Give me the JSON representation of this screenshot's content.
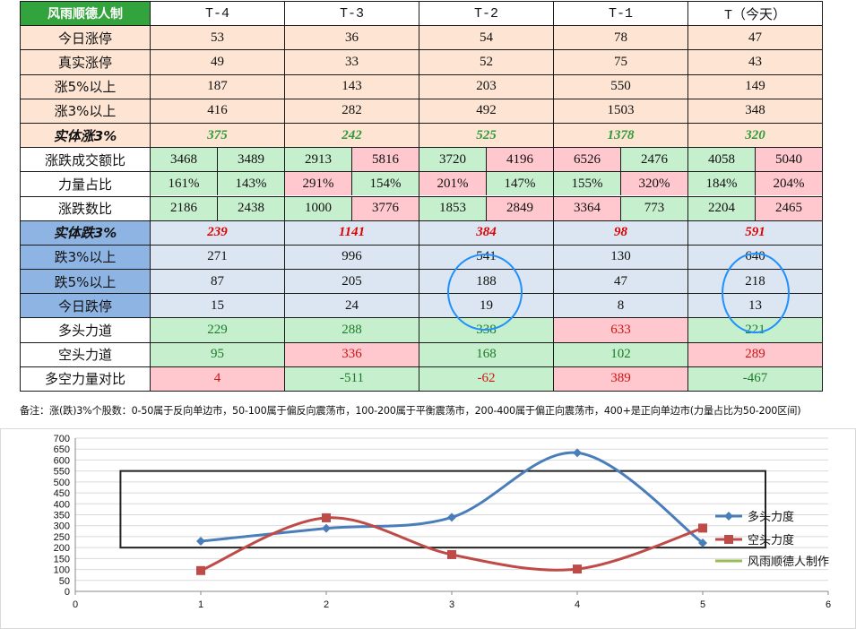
{
  "table": {
    "title": "风雨顺德人制",
    "columns": [
      "T-4",
      "T-3",
      "T-2",
      "T-1",
      "T（今天）"
    ],
    "up_rows": [
      {
        "label": "今日涨停",
        "values": [
          "53",
          "36",
          "54",
          "78",
          "47"
        ]
      },
      {
        "label": "真实涨停",
        "values": [
          "49",
          "33",
          "52",
          "75",
          "43"
        ]
      },
      {
        "label": "涨5%以上",
        "values": [
          "187",
          "143",
          "203",
          "550",
          "149"
        ]
      },
      {
        "label": "涨3%以上",
        "values": [
          "416",
          "282",
          "492",
          "1503",
          "348"
        ]
      }
    ],
    "solid_up": {
      "label": "实体涨3%",
      "values": [
        "375",
        "242",
        "525",
        "1378",
        "320"
      ]
    },
    "split_rows": [
      {
        "label": "涨跌成交额比",
        "pairs": [
          [
            "3468",
            "3489"
          ],
          [
            "2913",
            "5816"
          ],
          [
            "3720",
            "4196"
          ],
          [
            "6526",
            "2476"
          ],
          [
            "4058",
            "5040"
          ]
        ],
        "colors": [
          [
            "g",
            "g"
          ],
          [
            "g",
            "p"
          ],
          [
            "g",
            "p"
          ],
          [
            "p",
            "g"
          ],
          [
            "g",
            "p"
          ]
        ]
      },
      {
        "label": "力量占比",
        "pairs": [
          [
            "161%",
            "143%"
          ],
          [
            "291%",
            "154%"
          ],
          [
            "201%",
            "147%"
          ],
          [
            "155%",
            "320%"
          ],
          [
            "184%",
            "204%"
          ]
        ],
        "colors": [
          [
            "g",
            "g"
          ],
          [
            "p",
            "g"
          ],
          [
            "p",
            "g"
          ],
          [
            "g",
            "p"
          ],
          [
            "g",
            "p"
          ]
        ]
      },
      {
        "label": "涨跌数比",
        "pairs": [
          [
            "2186",
            "2438"
          ],
          [
            "1000",
            "3776"
          ],
          [
            "1853",
            "2849"
          ],
          [
            "3364",
            "773"
          ],
          [
            "2204",
            "2465"
          ]
        ],
        "colors": [
          [
            "g",
            "g"
          ],
          [
            "g",
            "p"
          ],
          [
            "g",
            "p"
          ],
          [
            "p",
            "g"
          ],
          [
            "g",
            "p"
          ]
        ]
      }
    ],
    "solid_down": {
      "label": "实体跌3%",
      "values": [
        "239",
        "1141",
        "384",
        "98",
        "591"
      ]
    },
    "down_rows": [
      {
        "label": "跌3%以上",
        "values": [
          "271",
          "996",
          "541",
          "130",
          "640"
        ]
      },
      {
        "label": "跌5%以上",
        "values": [
          "87",
          "205",
          "188",
          "47",
          "218"
        ]
      },
      {
        "label": "今日跌停",
        "values": [
          "15",
          "24",
          "19",
          "8",
          "13"
        ]
      }
    ],
    "force_rows": [
      {
        "label": "多头力道",
        "values": [
          "229",
          "288",
          "338",
          "633",
          "221"
        ],
        "colors": [
          "g",
          "g",
          "g",
          "p",
          "g"
        ],
        "text": [
          "gt",
          "gt",
          "gt",
          "rt",
          "gt"
        ]
      },
      {
        "label": "空头力道",
        "values": [
          "95",
          "336",
          "168",
          "102",
          "289"
        ],
        "colors": [
          "g",
          "p",
          "g",
          "g",
          "p"
        ],
        "text": [
          "gt",
          "rt",
          "gt",
          "gt",
          "rt"
        ]
      },
      {
        "label": "多空力量对比",
        "values": [
          "4",
          "-511",
          "-62",
          "389",
          "-467"
        ],
        "colors": [
          "p",
          "g",
          "g",
          "p",
          "g"
        ],
        "text": [
          "rt",
          "gt",
          "rt",
          "rt",
          "gt"
        ]
      }
    ],
    "note": "备注：涨(跌)3%个股数：0-50属于反向单边市，50-100属于偏反向震荡市，100-200属于平衡震荡市，200-400属于偏正向震荡市，400+是正向单边市(力量占比为50-200区间)"
  },
  "colors": {
    "header_green": "#33a33d",
    "peach": "#fde4d3",
    "light_blue": "#dce6f2",
    "dark_blue": "#8eb4e3",
    "good_green": "#c6efce",
    "bad_pink": "#ffc7ce",
    "circle": "#1e90ff",
    "series_bull": "#4a7ebb",
    "series_bear": "#be4b48",
    "series_credit": "#9bbb59"
  },
  "chart_data": {
    "type": "line",
    "series": [
      {
        "name": "多头力度",
        "x": [
          1,
          2,
          3,
          4,
          5
        ],
        "values": [
          229,
          288,
          338,
          633,
          221
        ],
        "marker": "diamond"
      },
      {
        "name": "空头力度",
        "x": [
          1,
          2,
          3,
          4,
          5
        ],
        "values": [
          95,
          336,
          168,
          102,
          289
        ],
        "marker": "square"
      },
      {
        "name": "风雨顺德人制作",
        "x": [],
        "values": [],
        "marker": "none"
      }
    ],
    "xlim": [
      0,
      6
    ],
    "ylim": [
      0,
      700
    ],
    "xticks": [
      "0",
      "1",
      "2",
      "3",
      "4",
      "5",
      "6"
    ],
    "yticks": [
      "0",
      "50",
      "100",
      "150",
      "200",
      "250",
      "300",
      "350",
      "400",
      "450",
      "500",
      "550",
      "600",
      "650",
      "700"
    ],
    "smooth": true,
    "grid": "horizontal",
    "legend": "right",
    "annotation_box": {
      "x": [
        0.36,
        5.5
      ],
      "y": [
        200,
        550
      ]
    }
  }
}
